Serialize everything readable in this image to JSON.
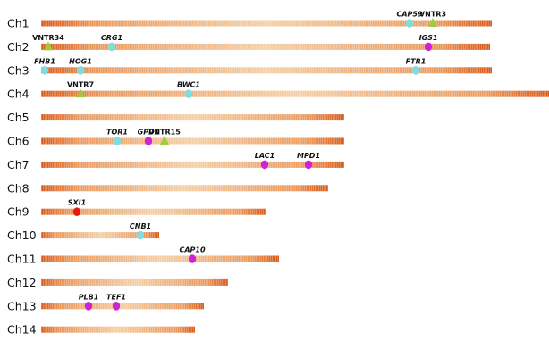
{
  "colors": {
    "bar_dark": "#d95a1a",
    "bar_mid": "#ea9a5e",
    "bar_light": "#f4cfa6",
    "marker_cyan": "#7fdde0",
    "marker_magenta": "#d020d8",
    "marker_red": "#e01c10",
    "marker_green": "#9ccd3c"
  },
  "chromosomes": [
    {
      "label": "Ch1",
      "length": 550,
      "markers": [
        {
          "name": "CAP59",
          "kind": "gene",
          "color": "cyan",
          "pos": 458
        },
        {
          "name": "VNTR3",
          "kind": "vntr",
          "color": "green",
          "pos": 484
        }
      ]
    },
    {
      "label": "Ch2",
      "length": 548,
      "markers": [
        {
          "name": "VNTR34",
          "kind": "vntr",
          "color": "green",
          "pos": 54
        },
        {
          "name": "CRG1",
          "kind": "gene",
          "color": "cyan",
          "pos": 125
        },
        {
          "name": "IGS1",
          "kind": "gene",
          "color": "magenta",
          "pos": 479
        }
      ]
    },
    {
      "label": "Ch3",
      "length": 550,
      "markers": [
        {
          "name": "FHB1",
          "kind": "gene",
          "color": "cyan",
          "pos": 50
        },
        {
          "name": "HOG1",
          "kind": "gene",
          "color": "cyan",
          "pos": 90
        },
        {
          "name": "FTR1",
          "kind": "gene",
          "color": "cyan",
          "pos": 465
        }
      ]
    },
    {
      "label": "Ch4",
      "length": 614,
      "markers": [
        {
          "name": "VNTR7",
          "kind": "vntr",
          "color": "green",
          "pos": 90
        },
        {
          "name": "BWC1",
          "kind": "gene",
          "color": "cyan",
          "pos": 211
        }
      ]
    },
    {
      "label": "Ch5",
      "length": 385,
      "markers": []
    },
    {
      "label": "Ch6",
      "length": 385,
      "markers": [
        {
          "name": "TOR1",
          "kind": "gene",
          "color": "cyan",
          "pos": 131
        },
        {
          "name": "GPD1",
          "kind": "gene",
          "color": "magenta",
          "pos": 166
        },
        {
          "name": "VNTR15",
          "kind": "vntr",
          "color": "green",
          "pos": 184
        }
      ]
    },
    {
      "label": "Ch7",
      "length": 385,
      "markers": [
        {
          "name": "LAC1",
          "kind": "gene",
          "color": "magenta",
          "pos": 296
        },
        {
          "name": "MPD1",
          "kind": "gene",
          "color": "magenta",
          "pos": 345
        }
      ]
    },
    {
      "label": "Ch8",
      "length": 367,
      "markers": []
    },
    {
      "label": "Ch9",
      "length": 298,
      "markers": [
        {
          "name": "SXI1",
          "kind": "gene",
          "color": "red",
          "pos": 86
        }
      ]
    },
    {
      "label": "Ch10",
      "length": 178,
      "markers": [
        {
          "name": "CNB1",
          "kind": "gene",
          "color": "cyan",
          "pos": 157
        }
      ]
    },
    {
      "label": "Ch11",
      "length": 312,
      "markers": [
        {
          "name": "CAP10",
          "kind": "gene",
          "color": "magenta",
          "pos": 215
        }
      ]
    },
    {
      "label": "Ch12",
      "length": 255,
      "markers": []
    },
    {
      "label": "Ch13",
      "length": 228,
      "markers": [
        {
          "name": "PLB1",
          "kind": "gene",
          "color": "magenta",
          "pos": 99
        },
        {
          "name": "TEF1",
          "kind": "gene",
          "color": "magenta",
          "pos": 130
        }
      ]
    },
    {
      "label": "Ch14",
      "length": 218,
      "markers": []
    }
  ]
}
